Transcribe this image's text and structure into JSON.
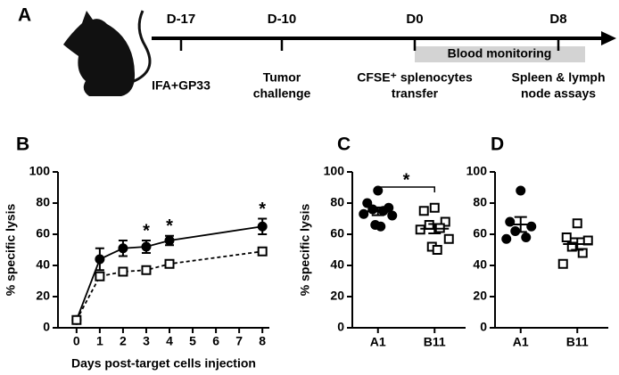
{
  "timeline": {
    "panel_label": "A",
    "events": [
      {
        "day": "D-17",
        "label": [
          "IFA+GP33"
        ]
      },
      {
        "day": "D-10",
        "label": [
          "Tumor",
          "challenge"
        ]
      },
      {
        "day": "D0",
        "label": [
          "CFSE⁺ splenocytes",
          "transfer"
        ]
      },
      {
        "day": "D8",
        "label": [
          "Spleen & lymph",
          "node assays"
        ]
      }
    ],
    "monitoring": "Blood monitoring"
  },
  "chart_data": [
    {
      "type": "line",
      "panel_label": "B",
      "x_label": "Days post-target cells injection",
      "y_label": "% specific lysis",
      "x": [
        0,
        1,
        2,
        3,
        4,
        8
      ],
      "series": [
        {
          "color": "#000000",
          "marker": "circle",
          "marker_fill": "#000000",
          "line_style": "solid",
          "values": [
            5,
            44,
            51,
            52,
            56,
            65
          ],
          "errors": [
            1,
            7,
            5,
            4,
            3,
            5
          ]
        },
        {
          "color": "#000000",
          "marker": "square",
          "marker_fill": "#ffffff",
          "line_style": "dashed",
          "values": [
            5,
            33,
            36,
            37,
            41,
            49
          ],
          "errors": [
            1,
            2,
            1,
            2,
            1,
            2
          ]
        }
      ],
      "annotations": [
        {
          "x": 3,
          "text": "*"
        },
        {
          "x": 4,
          "text": "*"
        },
        {
          "x": 8,
          "text": "*"
        }
      ],
      "xlim": [
        -0.8,
        8.3
      ],
      "xticks": [
        0,
        1,
        2,
        3,
        4,
        5,
        6,
        7,
        8
      ],
      "ylim": [
        0,
        100
      ],
      "yticks": [
        0,
        20,
        40,
        60,
        80,
        100
      ]
    },
    {
      "type": "dotplot",
      "panel_label": "C",
      "y_label": "% specific lysis",
      "categories": [
        "A1",
        "B11"
      ],
      "groups": [
        {
          "marker": "circle",
          "marker_fill": "#000000",
          "values": [
            88,
            80,
            77,
            76,
            75,
            73,
            72,
            66,
            65
          ],
          "mean": 74.7,
          "sem": 2.5
        },
        {
          "marker": "square",
          "marker_fill": "#ffffff",
          "values": [
            77,
            75,
            68,
            66,
            64,
            63,
            57,
            52,
            50
          ],
          "mean": 63.6,
          "sem": 3
        }
      ],
      "comparisons": [
        {
          "from": "A1",
          "to": "B11",
          "label": "*"
        }
      ],
      "ylim": [
        0,
        100
      ],
      "yticks": [
        0,
        20,
        40,
        60,
        80,
        100
      ]
    },
    {
      "type": "dotplot",
      "panel_label": "D",
      "categories": [
        "A1",
        "B11"
      ],
      "groups": [
        {
          "marker": "circle",
          "marker_fill": "#000000",
          "values": [
            88,
            68,
            65,
            62,
            58,
            57
          ],
          "mean": 66.3,
          "sem": 4.8
        },
        {
          "marker": "square",
          "marker_fill": "#ffffff",
          "values": [
            67,
            58,
            56,
            52,
            48,
            41
          ],
          "mean": 53.7,
          "sem": 3.7
        }
      ],
      "ylim": [
        0,
        100
      ],
      "yticks": [
        0,
        20,
        40,
        60,
        80,
        100
      ]
    }
  ]
}
